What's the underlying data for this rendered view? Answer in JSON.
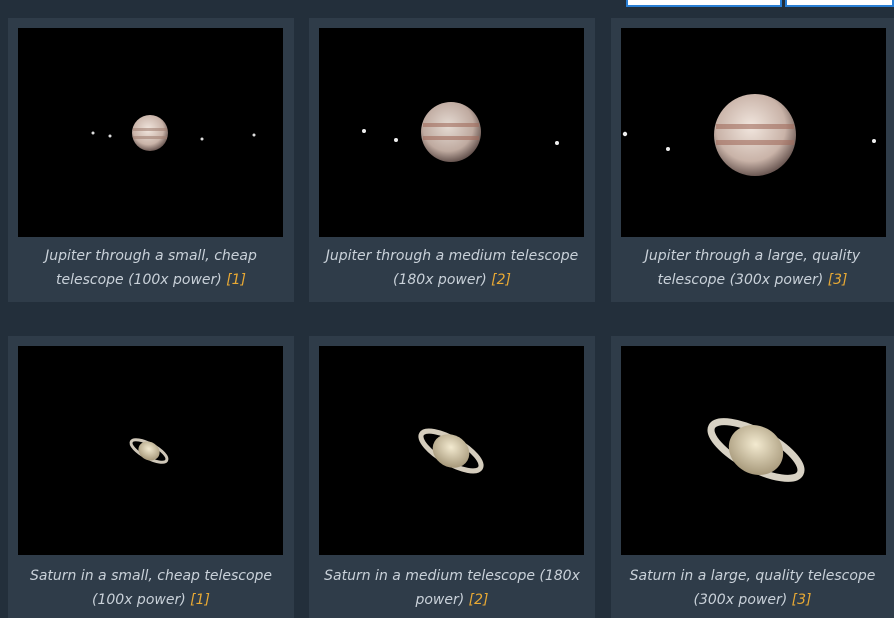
{
  "cards": [
    {
      "caption": "Jupiter through a small, cheap telescope (100x power)",
      "ref": "[1]"
    },
    {
      "caption": "Jupiter through a medium telescope (180x power)",
      "ref": "[2]"
    },
    {
      "caption": "Jupiter through a large, quality telescope (300x power)",
      "ref": "[3]"
    },
    {
      "caption": "Saturn in a small, cheap telescope (100x power)",
      "ref": "[1]"
    },
    {
      "caption": "Saturn in a medium telescope (180x power)",
      "ref": "[2]"
    },
    {
      "caption": "Saturn in a large, quality telescope (300x power)",
      "ref": "[3]"
    }
  ]
}
